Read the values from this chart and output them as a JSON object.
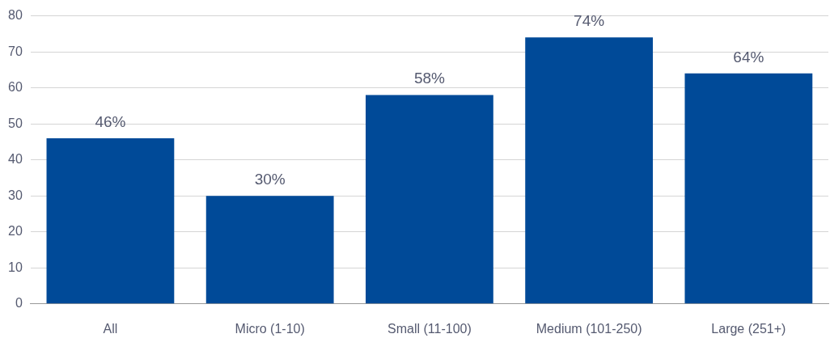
{
  "chart_data": {
    "type": "bar",
    "categories": [
      "All",
      "Micro (1-10)",
      "Small (11-100)",
      "Medium (101-250)",
      "Large (251+)"
    ],
    "values": [
      46,
      30,
      58,
      74,
      64
    ],
    "value_labels": [
      "46%",
      "30%",
      "58%",
      "74%",
      "64%"
    ],
    "color": "#004a98",
    "ylim": [
      0,
      80
    ],
    "yticks": [
      0,
      10,
      20,
      30,
      40,
      50,
      60,
      70,
      80
    ],
    "grid": "y",
    "legend": false
  }
}
